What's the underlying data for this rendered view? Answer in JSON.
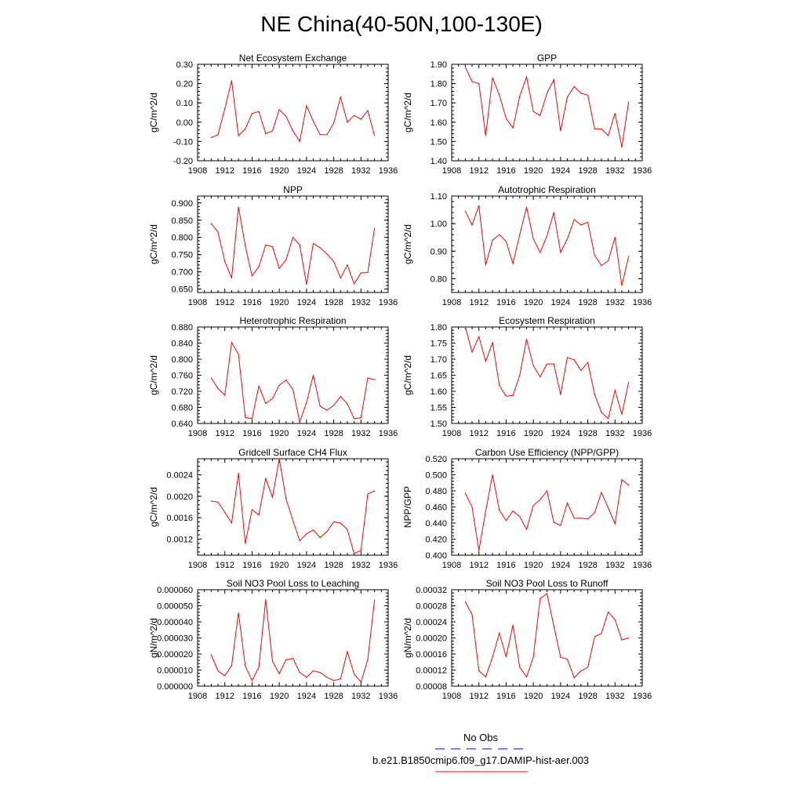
{
  "figure_title": "NE China(40-50N,100-130E)",
  "colors": {
    "series": "#ff0000",
    "no_obs": "#0000ff",
    "axis": "#000000"
  },
  "legend": {
    "items": [
      {
        "label": "No Obs",
        "style": "dashed",
        "color": "#0000ff"
      },
      {
        "label": "b.e21.B1850cmip6.f09_g17.DAMIP-hist-aer.003",
        "style": "solid",
        "color": "#ff0000"
      }
    ]
  },
  "chart_data": [
    {
      "type": "line",
      "title": "Net Ecosystem Exchange",
      "ylabel": "gC/m^2/d",
      "xlim": [
        1908,
        1936
      ],
      "ylim": [
        -0.2,
        0.3
      ],
      "xticks": [
        "1908",
        "1912",
        "1916",
        "1920",
        "1924",
        "1928",
        "1932",
        "1936"
      ],
      "yticks": [
        "-0.20",
        "-0.10",
        "0.00",
        "0.10",
        "0.20",
        "0.30"
      ],
      "x": [
        1910,
        1911,
        1912,
        1913,
        1914,
        1915,
        1916,
        1917,
        1918,
        1919,
        1920,
        1921,
        1922,
        1923,
        1924,
        1925,
        1926,
        1927,
        1928,
        1929,
        1930,
        1931,
        1932,
        1933,
        1934
      ],
      "series": [
        {
          "values": [
            -0.08,
            -0.065,
            0.07,
            0.215,
            -0.07,
            -0.035,
            0.045,
            0.055,
            -0.06,
            -0.045,
            0.065,
            0.03,
            -0.045,
            -0.1,
            0.085,
            0.005,
            -0.065,
            -0.065,
            -0.005,
            0.13,
            0.0,
            0.035,
            0.015,
            0.06,
            -0.07
          ]
        }
      ]
    },
    {
      "type": "line",
      "title": "GPP",
      "ylabel": "gC/m^2/d",
      "xlim": [
        1908,
        1936
      ],
      "ylim": [
        1.4,
        1.9
      ],
      "xticks": [
        "1908",
        "1912",
        "1916",
        "1920",
        "1924",
        "1928",
        "1932",
        "1936"
      ],
      "yticks": [
        "1.40",
        "1.50",
        "1.60",
        "1.70",
        "1.80",
        "1.90"
      ],
      "x": [
        1910,
        1911,
        1912,
        1913,
        1914,
        1915,
        1916,
        1917,
        1918,
        1919,
        1920,
        1921,
        1922,
        1923,
        1924,
        1925,
        1926,
        1927,
        1928,
        1929,
        1930,
        1931,
        1932,
        1933,
        1934
      ],
      "series": [
        {
          "values": [
            1.885,
            1.81,
            1.8,
            1.53,
            1.83,
            1.74,
            1.62,
            1.57,
            1.735,
            1.835,
            1.655,
            1.635,
            1.75,
            1.82,
            1.555,
            1.73,
            1.785,
            1.75,
            1.74,
            1.565,
            1.565,
            1.53,
            1.645,
            1.47,
            1.705
          ]
        }
      ]
    },
    {
      "type": "line",
      "title": "NPP",
      "ylabel": "gC/m^2/d",
      "xlim": [
        1908,
        1936
      ],
      "ylim": [
        0.64,
        0.92
      ],
      "xticks": [
        "1908",
        "1912",
        "1916",
        "1920",
        "1924",
        "1928",
        "1932",
        "1936"
      ],
      "yticks": [
        "0.650",
        "0.700",
        "0.750",
        "0.800",
        "0.850",
        "0.900"
      ],
      "ytick_values": [
        0.65,
        0.7,
        0.75,
        0.8,
        0.85,
        0.9
      ],
      "x": [
        1910,
        1911,
        1912,
        1913,
        1914,
        1915,
        1916,
        1917,
        1918,
        1919,
        1920,
        1921,
        1922,
        1923,
        1924,
        1925,
        1926,
        1927,
        1928,
        1929,
        1930,
        1931,
        1932,
        1933,
        1934
      ],
      "series": [
        {
          "values": [
            0.84,
            0.815,
            0.73,
            0.682,
            0.888,
            0.775,
            0.688,
            0.715,
            0.778,
            0.773,
            0.71,
            0.735,
            0.8,
            0.778,
            0.664,
            0.782,
            0.77,
            0.752,
            0.73,
            0.682,
            0.72,
            0.665,
            0.697,
            0.698,
            0.826
          ]
        }
      ]
    },
    {
      "type": "line",
      "title": "Autotrophic Respiration",
      "ylabel": "gC/m^2/d",
      "xlim": [
        1908,
        1936
      ],
      "ylim": [
        0.75,
        1.1
      ],
      "xticks": [
        "1908",
        "1912",
        "1916",
        "1920",
        "1924",
        "1928",
        "1932",
        "1936"
      ],
      "yticks": [
        "0.80",
        "0.90",
        "1.00",
        "1.10"
      ],
      "ytick_values": [
        0.8,
        0.9,
        1.0,
        1.1
      ],
      "x": [
        1910,
        1911,
        1912,
        1913,
        1914,
        1915,
        1916,
        1917,
        1918,
        1919,
        1920,
        1921,
        1922,
        1923,
        1924,
        1925,
        1926,
        1927,
        1928,
        1929,
        1930,
        1931,
        1932,
        1933,
        1934
      ],
      "series": [
        {
          "values": [
            1.045,
            0.995,
            1.065,
            0.85,
            0.94,
            0.96,
            0.935,
            0.855,
            0.96,
            1.06,
            0.945,
            0.895,
            0.955,
            1.04,
            0.895,
            0.945,
            1.015,
            0.995,
            1.005,
            0.885,
            0.848,
            0.865,
            0.95,
            0.775,
            0.88
          ]
        }
      ]
    },
    {
      "type": "line",
      "title": "Heterotrophic Respiration",
      "ylabel": "gC/m^2/d",
      "xlim": [
        1908,
        1936
      ],
      "ylim": [
        0.64,
        0.88
      ],
      "xticks": [
        "1908",
        "1912",
        "1916",
        "1920",
        "1924",
        "1928",
        "1932",
        "1936"
      ],
      "yticks": [
        "0.640",
        "0.680",
        "0.720",
        "0.760",
        "0.800",
        "0.840",
        "0.880"
      ],
      "x": [
        1910,
        1911,
        1912,
        1913,
        1914,
        1915,
        1916,
        1917,
        1918,
        1919,
        1920,
        1921,
        1922,
        1923,
        1924,
        1925,
        1926,
        1927,
        1928,
        1929,
        1930,
        1931,
        1932,
        1933,
        1934
      ],
      "series": [
        {
          "values": [
            0.753,
            0.727,
            0.71,
            0.842,
            0.812,
            0.655,
            0.652,
            0.733,
            0.69,
            0.702,
            0.735,
            0.748,
            0.725,
            0.644,
            0.692,
            0.76,
            0.683,
            0.673,
            0.685,
            0.707,
            0.689,
            0.652,
            0.654,
            0.753,
            0.749
          ]
        }
      ]
    },
    {
      "type": "line",
      "title": "Ecosystem Respiration",
      "ylabel": "gC/m^2/d",
      "xlim": [
        1908,
        1936
      ],
      "ylim": [
        1.5,
        1.8
      ],
      "xticks": [
        "1908",
        "1912",
        "1916",
        "1920",
        "1924",
        "1928",
        "1932",
        "1936"
      ],
      "yticks": [
        "1.50",
        "1.55",
        "1.60",
        "1.65",
        "1.70",
        "1.75",
        "1.80"
      ],
      "x": [
        1910,
        1911,
        1912,
        1913,
        1914,
        1915,
        1916,
        1917,
        1918,
        1919,
        1920,
        1921,
        1922,
        1923,
        1924,
        1925,
        1926,
        1927,
        1928,
        1929,
        1930,
        1931,
        1932,
        1933,
        1934
      ],
      "series": [
        {
          "values": [
            1.8,
            1.722,
            1.77,
            1.693,
            1.752,
            1.618,
            1.585,
            1.587,
            1.65,
            1.762,
            1.68,
            1.645,
            1.685,
            1.685,
            1.59,
            1.705,
            1.698,
            1.665,
            1.69,
            1.59,
            1.535,
            1.515,
            1.603,
            1.528,
            1.628
          ]
        }
      ]
    },
    {
      "type": "line",
      "title": "Gridcell Surface CH4 Flux",
      "ylabel": "gC/m^2/d",
      "xlim": [
        1908,
        1936
      ],
      "ylim": [
        0.0009,
        0.0027
      ],
      "xticks": [
        "1908",
        "1912",
        "1916",
        "1920",
        "1924",
        "1928",
        "1932",
        "1936"
      ],
      "yticks": [
        "0.0012",
        "0.0016",
        "0.0020",
        "0.0024"
      ],
      "ytick_values": [
        0.0012,
        0.0016,
        0.002,
        0.0024
      ],
      "x": [
        1910,
        1911,
        1912,
        1913,
        1914,
        1915,
        1916,
        1917,
        1918,
        1919,
        1920,
        1921,
        1922,
        1923,
        1924,
        1925,
        1926,
        1927,
        1928,
        1929,
        1930,
        1931,
        1932,
        1933,
        1934
      ],
      "series": [
        {
          "values": [
            0.00191,
            0.00189,
            0.0017,
            0.0015,
            0.00243,
            0.00112,
            0.00175,
            0.00165,
            0.00233,
            0.00198,
            0.0027,
            0.00195,
            0.00155,
            0.00117,
            0.0013,
            0.00137,
            0.00123,
            0.00134,
            0.00152,
            0.0015,
            0.00138,
            0.00093,
            0.00099,
            0.00204,
            0.0021
          ]
        }
      ]
    },
    {
      "type": "line",
      "title": "Carbon Use Efficiency (NPP/GPP)",
      "ylabel": "NPP/GPP",
      "xlim": [
        1908,
        1936
      ],
      "ylim": [
        0.4,
        0.52
      ],
      "xticks": [
        "1908",
        "1912",
        "1916",
        "1920",
        "1924",
        "1928",
        "1932",
        "1936"
      ],
      "yticks": [
        "0.400",
        "0.420",
        "0.440",
        "0.460",
        "0.480",
        "0.500",
        "0.520"
      ],
      "x": [
        1910,
        1911,
        1912,
        1913,
        1914,
        1915,
        1916,
        1917,
        1918,
        1919,
        1920,
        1921,
        1922,
        1923,
        1924,
        1925,
        1926,
        1927,
        1928,
        1929,
        1930,
        1931,
        1932,
        1933,
        1934
      ],
      "series": [
        {
          "values": [
            0.477,
            0.46,
            0.406,
            0.455,
            0.5,
            0.456,
            0.443,
            0.455,
            0.448,
            0.432,
            0.462,
            0.469,
            0.48,
            0.441,
            0.437,
            0.465,
            0.446,
            0.446,
            0.445,
            0.453,
            0.478,
            0.459,
            0.439,
            0.494,
            0.487
          ]
        }
      ]
    },
    {
      "type": "line",
      "title": "Soil NO3 Pool Loss to Leaching",
      "ylabel": "gN/m^2/d",
      "xlim": [
        1908,
        1936
      ],
      "ylim": [
        0.0,
        6e-05
      ],
      "xticks": [
        "1908",
        "1912",
        "1916",
        "1920",
        "1924",
        "1928",
        "1932",
        "1936"
      ],
      "yticks": [
        "0.000000",
        "0.000010",
        "0.000020",
        "0.000030",
        "0.000040",
        "0.000050",
        "0.000060"
      ],
      "ytick_values": [
        0.0,
        1e-05,
        2e-05,
        3e-05,
        4e-05,
        5e-05,
        6e-05
      ],
      "x": [
        1910,
        1911,
        1912,
        1913,
        1914,
        1915,
        1916,
        1917,
        1918,
        1919,
        1920,
        1921,
        1922,
        1923,
        1924,
        1925,
        1926,
        1927,
        1928,
        1929,
        1930,
        1931,
        1932,
        1933,
        1934
      ],
      "series": [
        {
          "values": [
            1.95e-05,
            9.5e-06,
            6.5e-06,
            1.28e-05,
            4.55e-05,
            1.25e-05,
            3.5e-06,
            1.18e-05,
            5.38e-05,
            1.55e-05,
            7.8e-06,
            1.65e-05,
            1.72e-05,
            8.5e-06,
            5.5e-06,
            9.5e-06,
            8.5e-06,
            5.5e-06,
            3.5e-06,
            4.5e-06,
            2.15e-05,
            7.5e-06,
            2.5e-06,
            1.65e-05,
            5.35e-05
          ]
        }
      ]
    },
    {
      "type": "line",
      "title": "Soil NO3 Pool Loss to Runoff",
      "ylabel": "gN/m^2/d",
      "xlim": [
        1908,
        1936
      ],
      "ylim": [
        8e-05,
        0.00032
      ],
      "xticks": [
        "1908",
        "1912",
        "1916",
        "1920",
        "1924",
        "1928",
        "1932",
        "1936"
      ],
      "yticks": [
        "0.00008",
        "0.00012",
        "0.00016",
        "0.00020",
        "0.00024",
        "0.00028",
        "0.00032"
      ],
      "x": [
        1910,
        1911,
        1912,
        1913,
        1914,
        1915,
        1916,
        1917,
        1918,
        1919,
        1920,
        1921,
        1922,
        1923,
        1924,
        1925,
        1926,
        1927,
        1928,
        1929,
        1930,
        1931,
        1932,
        1933,
        1934
      ],
      "series": [
        {
          "values": [
            0.00029,
            0.000258,
            0.000118,
            0.000103,
            0.000152,
            0.000212,
            0.000153,
            0.000232,
            0.000127,
            0.000103,
            0.000152,
            0.000298,
            0.00031,
            0.00023,
            0.000152,
            0.000147,
            0.000101,
            0.000118,
            0.000127,
            0.000203,
            0.000211,
            0.000265,
            0.000245,
            0.000195,
            0.0002
          ]
        }
      ]
    }
  ]
}
